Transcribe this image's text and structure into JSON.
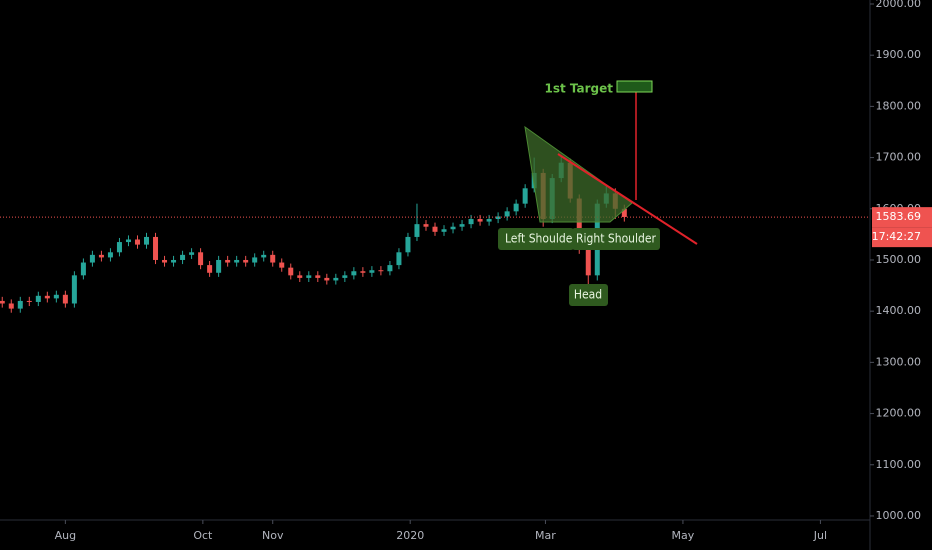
{
  "chart_data": {
    "type": "candlestick",
    "x": [
      1,
      5,
      9,
      13,
      17,
      21,
      25,
      29,
      33,
      37,
      41,
      45,
      49,
      53,
      57,
      61,
      65,
      69,
      73,
      77,
      81,
      85,
      89,
      93,
      97,
      101,
      105,
      109,
      113,
      117,
      121,
      125,
      129,
      133,
      137,
      141,
      145,
      149,
      153,
      157,
      161,
      165,
      169,
      173,
      177,
      181,
      185,
      189,
      193,
      197,
      201,
      205,
      209,
      213,
      217,
      221,
      225,
      229,
      233,
      237,
      241,
      245,
      249,
      253,
      257,
      261,
      265,
      269,
      273,
      277
    ],
    "open": [
      1420,
      1415,
      1405,
      1420,
      1418,
      1430,
      1425,
      1432,
      1415,
      1470,
      1495,
      1510,
      1505,
      1515,
      1535,
      1540,
      1530,
      1545,
      1500,
      1495,
      1500,
      1510,
      1515,
      1490,
      1475,
      1500,
      1495,
      1500,
      1495,
      1505,
      1510,
      1495,
      1485,
      1470,
      1465,
      1470,
      1465,
      1460,
      1465,
      1470,
      1478,
      1475,
      1480,
      1478,
      1490,
      1515,
      1545,
      1570,
      1565,
      1555,
      1560,
      1565,
      1570,
      1580,
      1575,
      1580,
      1585,
      1595,
      1610,
      1640,
      1670,
      1580,
      1660,
      1690,
      1620,
      1520,
      1470,
      1610,
      1630,
      1600
    ],
    "high": [
      1428,
      1423,
      1428,
      1428,
      1438,
      1438,
      1440,
      1440,
      1478,
      1503,
      1518,
      1518,
      1523,
      1543,
      1548,
      1548,
      1553,
      1553,
      1508,
      1508,
      1518,
      1523,
      1523,
      1498,
      1508,
      1508,
      1508,
      1508,
      1513,
      1518,
      1518,
      1503,
      1493,
      1478,
      1478,
      1478,
      1473,
      1473,
      1478,
      1486,
      1486,
      1488,
      1488,
      1498,
      1523,
      1553,
      1610,
      1578,
      1573,
      1568,
      1573,
      1578,
      1588,
      1588,
      1588,
      1593,
      1603,
      1618,
      1648,
      1700,
      1678,
      1668,
      1705,
      1698,
      1628,
      1528,
      1618,
      1645,
      1640,
      1608
    ],
    "low": [
      1407,
      1397,
      1397,
      1410,
      1410,
      1417,
      1417,
      1407,
      1407,
      1462,
      1487,
      1497,
      1497,
      1507,
      1527,
      1522,
      1522,
      1492,
      1487,
      1487,
      1492,
      1502,
      1482,
      1467,
      1467,
      1487,
      1487,
      1487,
      1487,
      1497,
      1487,
      1477,
      1462,
      1457,
      1457,
      1457,
      1452,
      1452,
      1457,
      1462,
      1467,
      1467,
      1470,
      1470,
      1482,
      1507,
      1537,
      1557,
      1547,
      1547,
      1552,
      1557,
      1562,
      1567,
      1567,
      1572,
      1577,
      1587,
      1602,
      1632,
      1565,
      1572,
      1652,
      1612,
      1512,
      1450,
      1460,
      1602,
      1580,
      1575
    ],
    "close": [
      1415,
      1405,
      1420,
      1418,
      1430,
      1425,
      1432,
      1415,
      1470,
      1495,
      1510,
      1505,
      1515,
      1535,
      1540,
      1530,
      1545,
      1500,
      1495,
      1500,
      1510,
      1515,
      1490,
      1475,
      1500,
      1495,
      1500,
      1495,
      1505,
      1510,
      1495,
      1485,
      1470,
      1465,
      1470,
      1465,
      1460,
      1465,
      1470,
      1478,
      1475,
      1480,
      1478,
      1490,
      1515,
      1545,
      1570,
      1565,
      1555,
      1560,
      1565,
      1570,
      1580,
      1575,
      1580,
      1585,
      1595,
      1610,
      1640,
      1670,
      1580,
      1660,
      1690,
      1620,
      1520,
      1470,
      1610,
      1630,
      1600,
      1584
    ],
    "up_color": "#26a69a",
    "down_color": "#ef5350",
    "xlim": [
      0,
      386
    ],
    "xticks": [
      {
        "value": 29,
        "label": "Aug"
      },
      {
        "value": 90,
        "label": "Oct"
      },
      {
        "value": 121,
        "label": "Nov"
      },
      {
        "value": 182,
        "label": "2020"
      },
      {
        "value": 242,
        "label": "Mar"
      },
      {
        "value": 303,
        "label": "May"
      },
      {
        "value": 364,
        "label": "Jul"
      }
    ],
    "ylim": [
      992.1,
      2000
    ],
    "yticks": [
      {
        "value": 1000,
        "label": "1000.00"
      },
      {
        "value": 1100,
        "label": "1100.00"
      },
      {
        "value": 1200,
        "label": "1200.00"
      },
      {
        "value": 1300,
        "label": "1300.00"
      },
      {
        "value": 1400,
        "label": "1400.00"
      },
      {
        "value": 1500,
        "label": "1500.00"
      },
      {
        "value": 1600,
        "label": "1600.00"
      },
      {
        "value": 1700,
        "label": "1700.00"
      },
      {
        "value": 1800,
        "label": "1800.00"
      },
      {
        "value": 1900,
        "label": "1900.00"
      },
      {
        "value": 2000,
        "label": "2000.00"
      }
    ],
    "last_price": 1583.69,
    "countdown": "17:42:27",
    "annotations": {
      "target": "1st Target",
      "left_shoulder": "Left Shoulder",
      "right_shoulder": "Right Shoulder",
      "head": "Head"
    }
  }
}
